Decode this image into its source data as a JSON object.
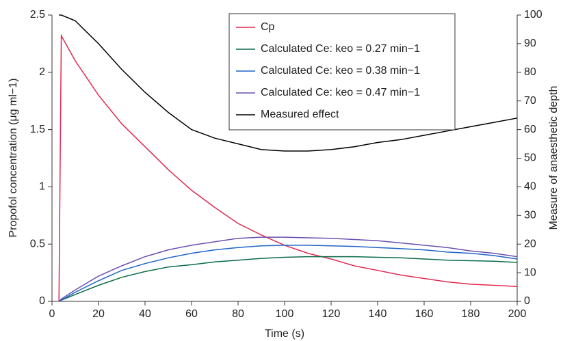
{
  "chart_data": {
    "type": "line",
    "xlabel": "Time (s)",
    "ylabel": "Propofol concentration (μg ml−1)",
    "y2label": "Measure of anaesthetic depth",
    "x": [
      3,
      4,
      10,
      20,
      30,
      40,
      50,
      60,
      70,
      80,
      90,
      100,
      110,
      120,
      130,
      140,
      150,
      160,
      170,
      180,
      190,
      200
    ],
    "series": [
      {
        "name": "Cp",
        "color": "#e0294f",
        "values": [
          0,
          2.32,
          2.1,
          1.8,
          1.55,
          1.35,
          1.15,
          0.97,
          0.82,
          0.68,
          0.58,
          0.49,
          0.42,
          0.37,
          0.31,
          0.27,
          0.23,
          0.2,
          0.17,
          0.15,
          0.14,
          0.13
        ]
      },
      {
        "name": "Calculated Ce: keo = 0.27 min−1",
        "color": "#0a6b45",
        "values": [
          0,
          0.01,
          0.06,
          0.14,
          0.21,
          0.26,
          0.3,
          0.32,
          0.345,
          0.36,
          0.375,
          0.385,
          0.39,
          0.39,
          0.39,
          0.385,
          0.38,
          0.37,
          0.36,
          0.355,
          0.35,
          0.34
        ]
      },
      {
        "name": "Calculated Ce: keo = 0.38 min−1",
        "color": "#1f63c4",
        "values": [
          0,
          0.01,
          0.08,
          0.18,
          0.27,
          0.33,
          0.38,
          0.42,
          0.45,
          0.47,
          0.485,
          0.49,
          0.49,
          0.485,
          0.48,
          0.47,
          0.46,
          0.45,
          0.43,
          0.42,
          0.4,
          0.37
        ]
      },
      {
        "name": "Calculated Ce: keo = 0.47 min−1",
        "color": "#6a4fae",
        "values": [
          0,
          0.02,
          0.1,
          0.22,
          0.31,
          0.39,
          0.45,
          0.49,
          0.52,
          0.55,
          0.56,
          0.56,
          0.555,
          0.55,
          0.54,
          0.53,
          0.51,
          0.49,
          0.47,
          0.44,
          0.42,
          0.39
        ]
      },
      {
        "name": "Measured effect",
        "color": "#000000",
        "axis": "y2",
        "values": [
          100,
          100,
          98,
          90,
          81,
          73,
          66,
          60,
          57,
          55,
          53,
          52.5,
          52.5,
          53,
          54,
          55.5,
          56.5,
          58,
          59.5,
          61,
          62.5,
          64
        ]
      }
    ],
    "xlim": [
      0,
      200
    ],
    "xticks": [
      0,
      20,
      40,
      60,
      80,
      100,
      120,
      140,
      160,
      180,
      200
    ],
    "ylim": [
      0,
      2.5
    ],
    "yticks": [
      0,
      0.5,
      1,
      1.5,
      2,
      2.5
    ],
    "y2lim": [
      0,
      100
    ],
    "y2ticks": [
      0,
      10,
      20,
      30,
      40,
      50,
      60,
      70,
      80,
      90,
      100
    ],
    "legend": "upper right"
  }
}
